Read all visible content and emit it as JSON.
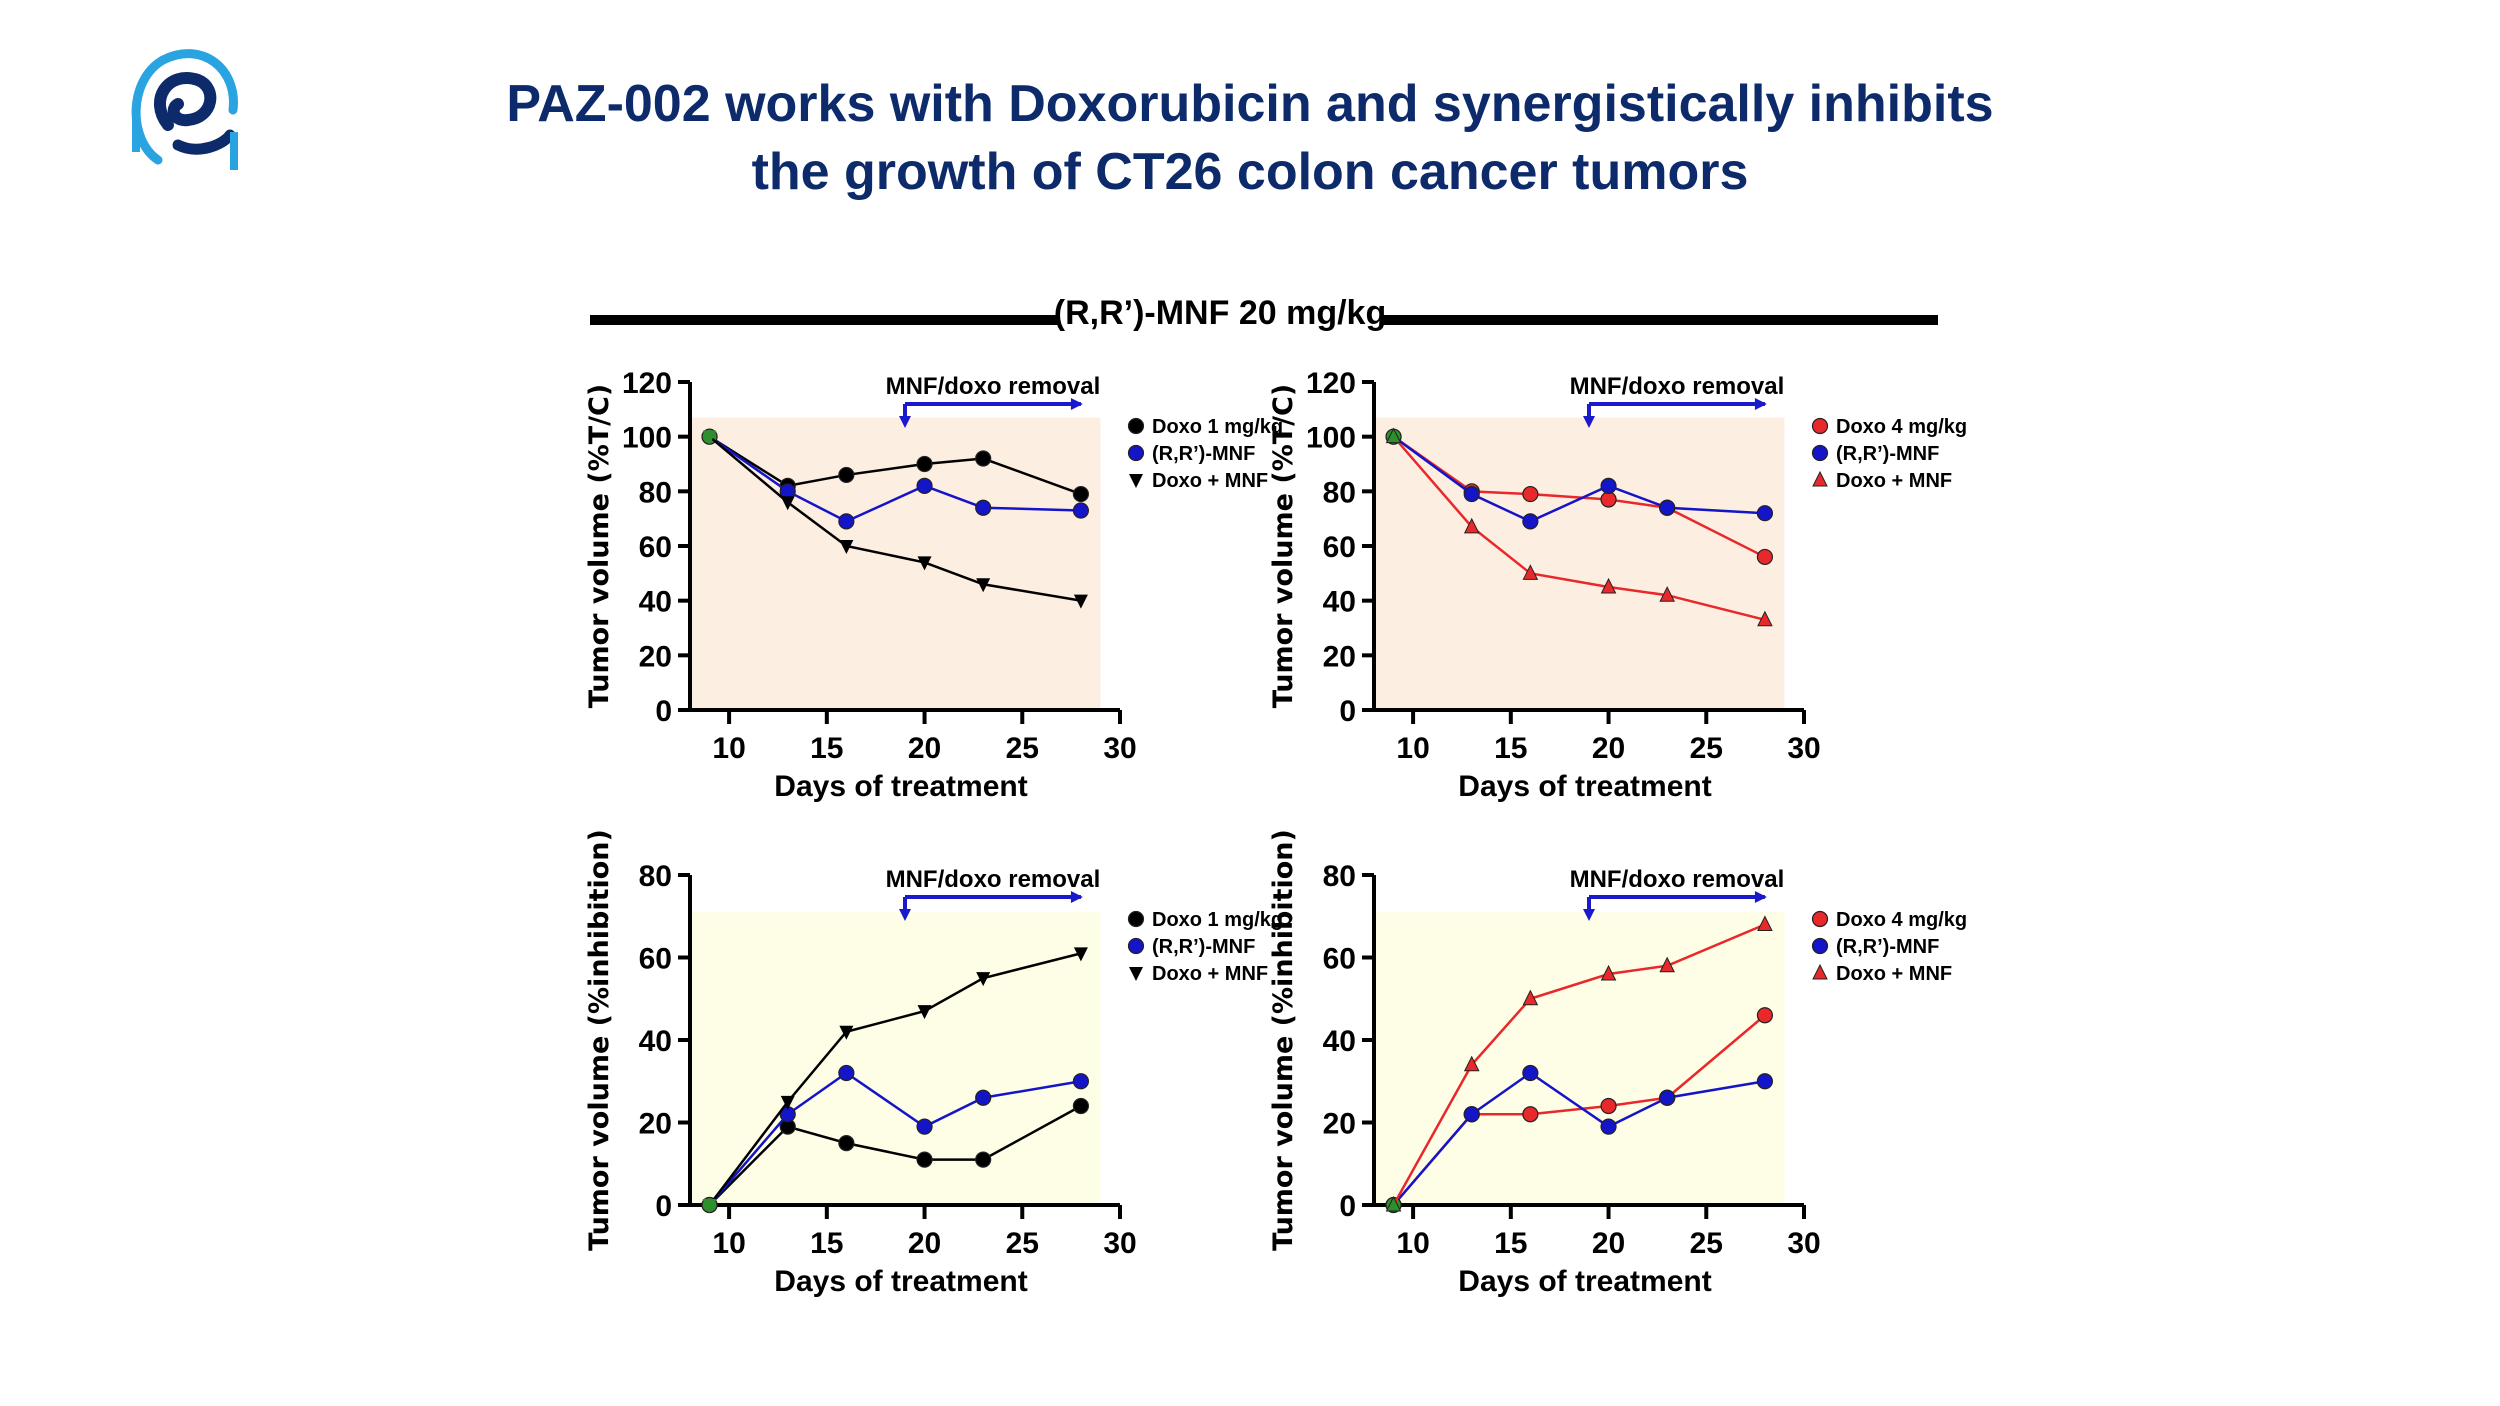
{
  "slide": {
    "title_line1": "PAZ-002 works with Doxorubicin and synergistically inhibits",
    "title_line2": "the growth of CT26 colon cancer tumors",
    "banner_label": "(R,R’)-MNF 20 mg/kg",
    "title_color": "#0d2a6b",
    "logo_icon": "company-logo-icon"
  },
  "colors": {
    "black_series": "#000000",
    "blue_series": "#1414c8",
    "red_series": "#e8282a",
    "panel_bg_top": "#fdeee2",
    "panel_bg_bottom": "#fefde6",
    "removal_arrow": "#1a1acc",
    "marker_green": "#2f8f2f"
  },
  "chart_data": [
    {
      "type": "line",
      "ylabel": "Tumor volume (%T/C)",
      "xlabel": "Days of treatment",
      "xlim": [
        8,
        30
      ],
      "ylim": [
        0,
        120
      ],
      "xticks": [
        10,
        15,
        20,
        25,
        30
      ],
      "yticks": [
        0,
        20,
        40,
        60,
        80,
        100,
        120
      ],
      "annotation": "MNF/doxo removal",
      "annotation_range": [
        19,
        28
      ],
      "legend_position": "top-right",
      "series": [
        {
          "name": "Doxo 1 mg/kg",
          "marker": "circle",
          "color": "#000000",
          "x": [
            9,
            13,
            16,
            20,
            23,
            28
          ],
          "y": [
            100,
            82,
            86,
            90,
            92,
            79
          ]
        },
        {
          "name": "(R,R’)-MNF",
          "marker": "circle",
          "color": "#1414c8",
          "x": [
            9,
            13,
            16,
            20,
            23,
            28
          ],
          "y": [
            100,
            80,
            69,
            82,
            74,
            73
          ]
        },
        {
          "name": "Doxo + MNF",
          "marker": "triangle-down",
          "color": "#000000",
          "x": [
            9,
            13,
            16,
            20,
            23,
            28
          ],
          "y": [
            100,
            76,
            60,
            54,
            46,
            40
          ]
        }
      ]
    },
    {
      "type": "line",
      "ylabel": "Tumor volume (%T/C)",
      "xlabel": "Days of treatment",
      "xlim": [
        8,
        30
      ],
      "ylim": [
        0,
        120
      ],
      "xticks": [
        10,
        15,
        20,
        25,
        30
      ],
      "yticks": [
        0,
        20,
        40,
        60,
        80,
        100,
        120
      ],
      "annotation": "MNF/doxo removal",
      "annotation_range": [
        19,
        28
      ],
      "legend_position": "top-right",
      "series": [
        {
          "name": "Doxo 4 mg/kg",
          "marker": "circle",
          "color": "#e8282a",
          "x": [
            9,
            13,
            16,
            20,
            23,
            28
          ],
          "y": [
            100,
            80,
            79,
            77,
            74,
            56
          ]
        },
        {
          "name": "(R,R’)-MNF",
          "marker": "circle",
          "color": "#1414c8",
          "x": [
            9,
            13,
            16,
            20,
            23,
            28
          ],
          "y": [
            100,
            79,
            69,
            82,
            74,
            72
          ]
        },
        {
          "name": "Doxo + MNF",
          "marker": "triangle-up",
          "color": "#e8282a",
          "x": [
            9,
            13,
            16,
            20,
            23,
            28
          ],
          "y": [
            100,
            67,
            50,
            45,
            42,
            33
          ]
        }
      ]
    },
    {
      "type": "line",
      "ylabel": "Tumor volume (%inhibition)",
      "xlabel": "Days of treatment",
      "xlim": [
        8,
        30
      ],
      "ylim": [
        0,
        80
      ],
      "xticks": [
        10,
        15,
        20,
        25,
        30
      ],
      "yticks": [
        0,
        20,
        40,
        60,
        80
      ],
      "annotation": "MNF/doxo removal",
      "annotation_range": [
        19,
        28
      ],
      "legend_position": "top-right",
      "series": [
        {
          "name": "Doxo 1 mg/kg",
          "marker": "circle",
          "color": "#000000",
          "x": [
            9,
            13,
            16,
            20,
            23,
            28
          ],
          "y": [
            0,
            19,
            15,
            11,
            11,
            24
          ]
        },
        {
          "name": "(R,R’)-MNF",
          "marker": "circle",
          "color": "#1414c8",
          "x": [
            9,
            13,
            16,
            20,
            23,
            28
          ],
          "y": [
            0,
            22,
            32,
            19,
            26,
            30
          ]
        },
        {
          "name": "Doxo + MNF",
          "marker": "triangle-down",
          "color": "#000000",
          "x": [
            9,
            13,
            16,
            20,
            23,
            28
          ],
          "y": [
            0,
            25,
            42,
            47,
            55,
            61
          ]
        }
      ]
    },
    {
      "type": "line",
      "ylabel": "Tumor volume (%inhibition)",
      "xlabel": "Days of treatment",
      "xlim": [
        8,
        30
      ],
      "ylim": [
        0,
        80
      ],
      "xticks": [
        10,
        15,
        20,
        25,
        30
      ],
      "yticks": [
        0,
        20,
        40,
        60,
        80
      ],
      "annotation": "MNF/doxo removal",
      "annotation_range": [
        19,
        28
      ],
      "legend_position": "top-right",
      "series": [
        {
          "name": "Doxo 4 mg/kg",
          "marker": "circle",
          "color": "#e8282a",
          "x": [
            9,
            13,
            16,
            20,
            23,
            28
          ],
          "y": [
            0,
            22,
            22,
            24,
            26,
            46
          ]
        },
        {
          "name": "(R,R’)-MNF",
          "marker": "circle",
          "color": "#1414c8",
          "x": [
            9,
            13,
            16,
            20,
            23,
            28
          ],
          "y": [
            0,
            22,
            32,
            19,
            26,
            30
          ]
        },
        {
          "name": "Doxo + MNF",
          "marker": "triangle-up",
          "color": "#e8282a",
          "x": [
            9,
            13,
            16,
            20,
            23,
            28
          ],
          "y": [
            0,
            34,
            50,
            56,
            58,
            68
          ]
        }
      ]
    }
  ]
}
